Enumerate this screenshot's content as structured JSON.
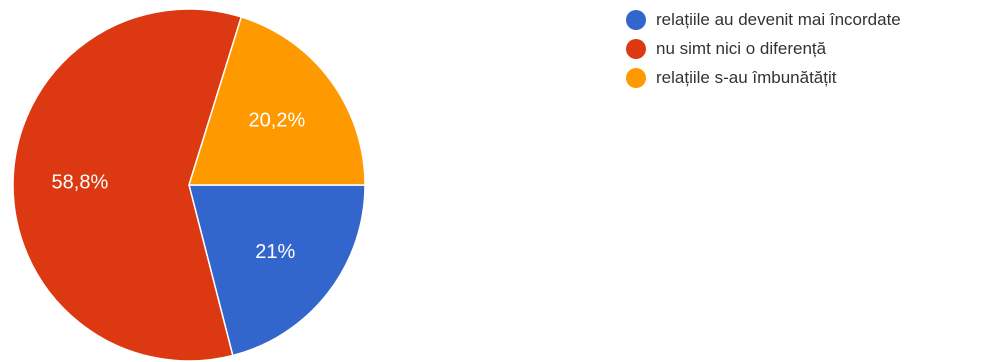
{
  "chart_data": {
    "type": "pie",
    "title": "",
    "slices": [
      {
        "label": "relațiile au devenit mai încordate",
        "value": 21,
        "display": "21%",
        "color": "#3366cc"
      },
      {
        "label": "nu simt nici o diferență",
        "value": 58.8,
        "display": "58,8%",
        "color": "#dc3912"
      },
      {
        "label": "relațiile s-au îmbunătățit",
        "value": 20.2,
        "display": "20,2%",
        "color": "#ff9900"
      }
    ],
    "legend_position": "top-right"
  },
  "legend": {
    "items": [
      {
        "label": "relațiile au devenit mai încordate",
        "color": "#3366cc"
      },
      {
        "label": "nu simt nici o diferență",
        "color": "#dc3912"
      },
      {
        "label": "relațiile s-au îmbunătățit",
        "color": "#ff9900"
      }
    ]
  }
}
